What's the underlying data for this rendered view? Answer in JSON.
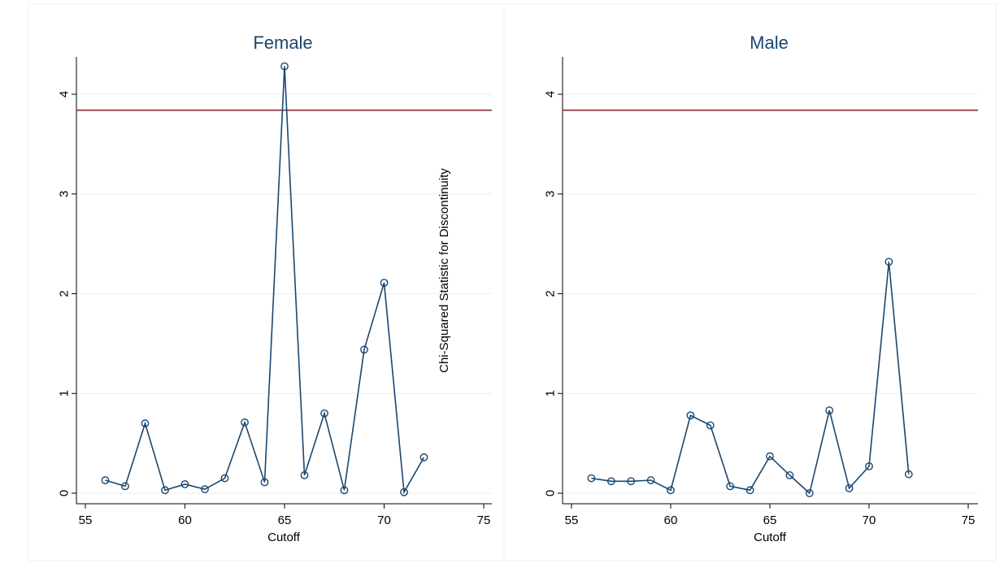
{
  "colors": {
    "series": "#1a476f",
    "reference_line": "#90353b",
    "grid": "#eaf2f3",
    "title": "#1a476f"
  },
  "shared_ylabel": "Chi-Squared Statistic for Discontinuity",
  "chart_data": [
    {
      "type": "line",
      "title": "Female",
      "xlabel": "Cutoff",
      "ylabel": "Chi-Squared Statistic for Discontinuity",
      "xlim": [
        55,
        75
      ],
      "ylim": [
        0,
        4.3
      ],
      "xticks": [
        55,
        60,
        65,
        70,
        75
      ],
      "yticks": [
        0,
        1,
        2,
        3,
        4
      ],
      "grid": true,
      "markers": "hollow-circle",
      "reference_line": 3.84,
      "x": [
        56,
        57,
        58,
        59,
        60,
        61,
        62,
        63,
        64,
        65,
        66,
        67,
        68,
        69,
        70,
        71,
        72
      ],
      "y": [
        0.13,
        0.07,
        0.7,
        0.03,
        0.09,
        0.04,
        0.15,
        0.71,
        0.11,
        4.28,
        0.18,
        0.8,
        0.03,
        1.44,
        2.11,
        0.01,
        0.36
      ]
    },
    {
      "type": "line",
      "title": "Male",
      "xlabel": "Cutoff",
      "ylabel": "",
      "xlim": [
        55,
        75
      ],
      "ylim": [
        0,
        4.3
      ],
      "xticks": [
        55,
        60,
        65,
        70,
        75
      ],
      "yticks": [
        0,
        1,
        2,
        3,
        4
      ],
      "grid": true,
      "markers": "hollow-circle",
      "reference_line": 3.84,
      "x": [
        56,
        57,
        58,
        59,
        60,
        61,
        62,
        63,
        64,
        65,
        66,
        67,
        68,
        69,
        70,
        71,
        72
      ],
      "y": [
        0.15,
        0.12,
        0.12,
        0.13,
        0.03,
        0.78,
        0.68,
        0.07,
        0.03,
        0.37,
        0.18,
        0.0,
        0.83,
        0.05,
        0.27,
        2.32,
        0.19
      ]
    }
  ]
}
